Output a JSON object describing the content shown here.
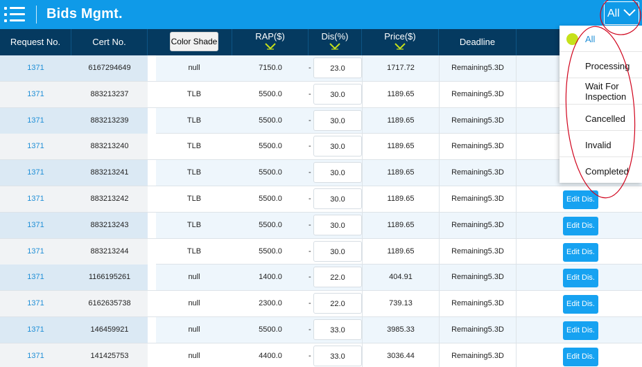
{
  "header": {
    "title": "Bids Mgmt.",
    "filter_label": "All"
  },
  "columns": {
    "request_no": "Request No.",
    "cert_no": "Cert No.",
    "color_shade": "Color Shade",
    "rap": "RAP($)",
    "dis": "Dis(%)",
    "price": "Price($)",
    "deadline": "Deadline"
  },
  "rows": [
    {
      "request_no": "1371",
      "cert_no": "6167294649",
      "color_shade": "null",
      "rap": "7150.0",
      "dash": "-",
      "dis": "23.0",
      "price": "1717.72",
      "deadline": "Remaining5.3D",
      "action": ""
    },
    {
      "request_no": "1371",
      "cert_no": "883213237",
      "color_shade": "TLB",
      "rap": "5500.0",
      "dash": "-",
      "dis": "30.0",
      "price": "1189.65",
      "deadline": "Remaining5.3D",
      "action": ""
    },
    {
      "request_no": "1371",
      "cert_no": "883213239",
      "color_shade": "TLB",
      "rap": "5500.0",
      "dash": "-",
      "dis": "30.0",
      "price": "1189.65",
      "deadline": "Remaining5.3D",
      "action": ""
    },
    {
      "request_no": "1371",
      "cert_no": "883213240",
      "color_shade": "TLB",
      "rap": "5500.0",
      "dash": "-",
      "dis": "30.0",
      "price": "1189.65",
      "deadline": "Remaining5.3D",
      "action": ""
    },
    {
      "request_no": "1371",
      "cert_no": "883213241",
      "color_shade": "TLB",
      "rap": "5500.0",
      "dash": "-",
      "dis": "30.0",
      "price": "1189.65",
      "deadline": "Remaining5.3D",
      "action": ""
    },
    {
      "request_no": "1371",
      "cert_no": "883213242",
      "color_shade": "TLB",
      "rap": "5500.0",
      "dash": "-",
      "dis": "30.0",
      "price": "1189.65",
      "deadline": "Remaining5.3D",
      "action": "Edit Dis."
    },
    {
      "request_no": "1371",
      "cert_no": "883213243",
      "color_shade": "TLB",
      "rap": "5500.0",
      "dash": "-",
      "dis": "30.0",
      "price": "1189.65",
      "deadline": "Remaining5.3D",
      "action": "Edit Dis."
    },
    {
      "request_no": "1371",
      "cert_no": "883213244",
      "color_shade": "TLB",
      "rap": "5500.0",
      "dash": "-",
      "dis": "30.0",
      "price": "1189.65",
      "deadline": "Remaining5.3D",
      "action": "Edit Dis."
    },
    {
      "request_no": "1371",
      "cert_no": "1166195261",
      "color_shade": "null",
      "rap": "1400.0",
      "dash": "-",
      "dis": "22.0",
      "price": "404.91",
      "deadline": "Remaining5.3D",
      "action": "Edit Dis."
    },
    {
      "request_no": "1371",
      "cert_no": "6162635738",
      "color_shade": "null",
      "rap": "2300.0",
      "dash": "-",
      "dis": "22.0",
      "price": "739.13",
      "deadline": "Remaining5.3D",
      "action": "Edit Dis."
    },
    {
      "request_no": "1371",
      "cert_no": "146459921",
      "color_shade": "null",
      "rap": "5500.0",
      "dash": "-",
      "dis": "33.0",
      "price": "3985.33",
      "deadline": "Remaining5.3D",
      "action": "Edit Dis."
    },
    {
      "request_no": "1371",
      "cert_no": "141425753",
      "color_shade": "null",
      "rap": "4400.0",
      "dash": "-",
      "dis": "33.0",
      "price": "3036.44",
      "deadline": "Remaining5.3D",
      "action": "Edit Dis."
    }
  ],
  "dropdown": {
    "items": [
      {
        "label": "All",
        "selected": true
      },
      {
        "label": "Processing",
        "selected": false
      },
      {
        "label": "Wait For Inspection",
        "line1": "Wait For",
        "line2": "Inspection",
        "selected": false
      },
      {
        "label": "Cancelled",
        "selected": false
      },
      {
        "label": "Invalid",
        "selected": false
      },
      {
        "label": "Completed",
        "selected": false
      }
    ]
  },
  "colors": {
    "topbar": "#0f9ae8",
    "header_row": "#053a60",
    "link_text": "#1e8ed6",
    "edit_button": "#16a2f1",
    "selected_dot": "#c6e11a",
    "annotation": "#d0021b"
  },
  "icons": {
    "menu": "menu-list-icon",
    "filter_chevron": "chevron-down-icon",
    "sort": "sort-chevron-icon"
  }
}
